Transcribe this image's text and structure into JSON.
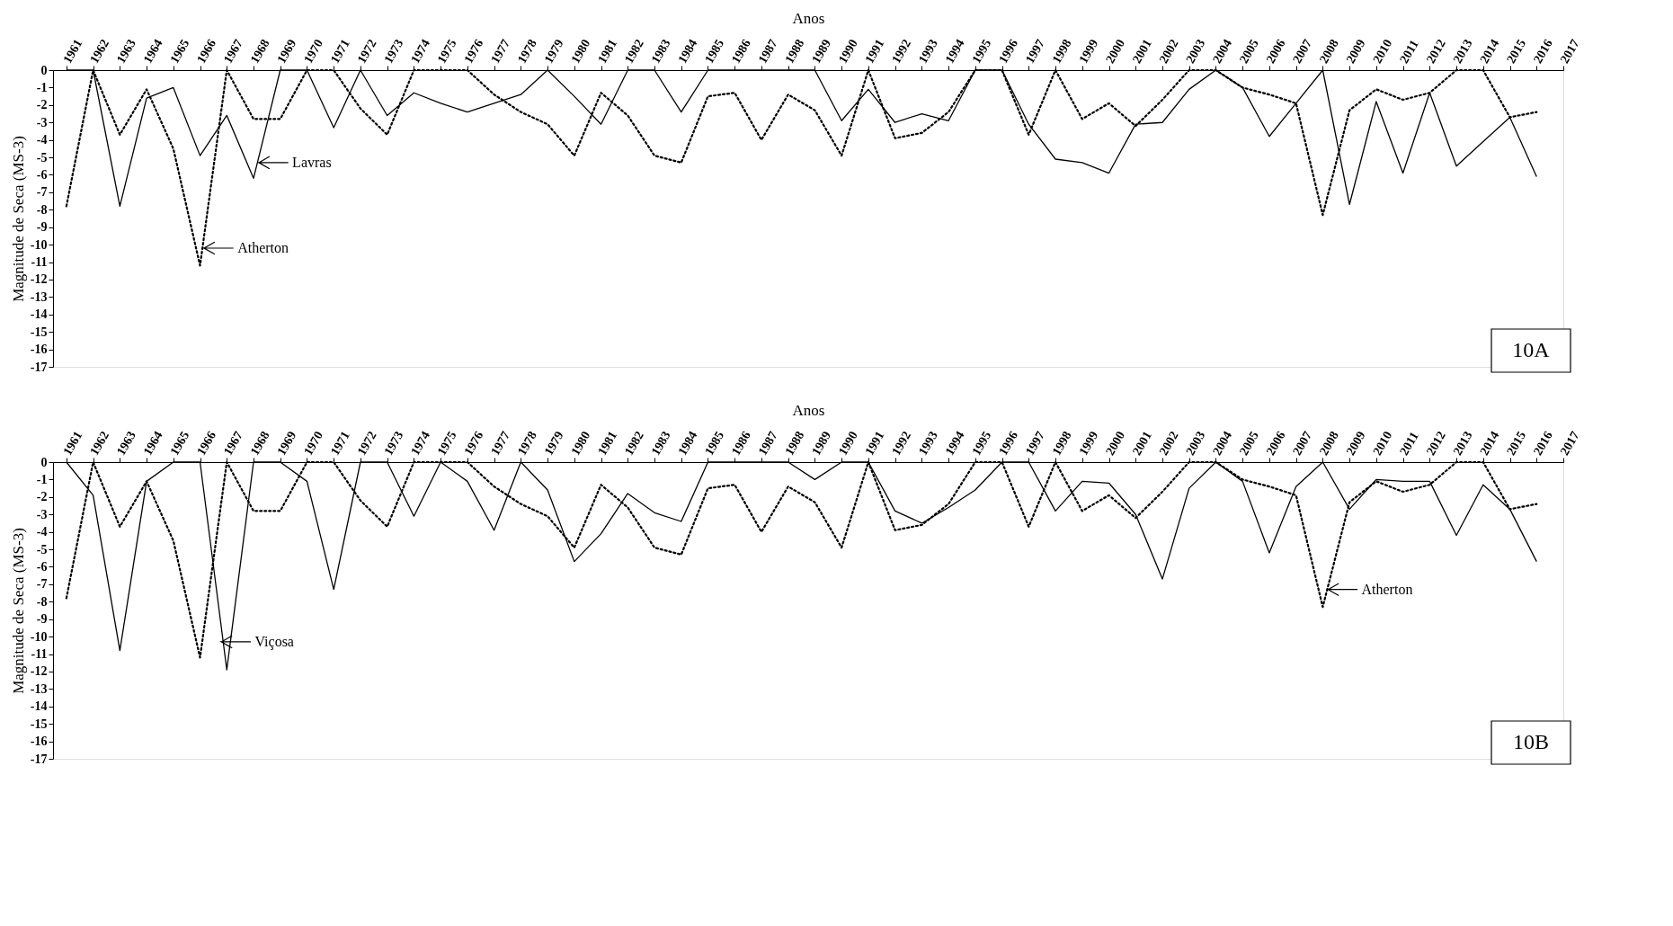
{
  "chart_data": [
    {
      "type": "line",
      "xlabel": "Anos",
      "ylabel": "Magnitude  de Seca (MS-3)",
      "x": [
        1961,
        1962,
        1963,
        1964,
        1965,
        1966,
        1967,
        1968,
        1969,
        1970,
        1971,
        1972,
        1973,
        1974,
        1975,
        1976,
        1977,
        1978,
        1979,
        1980,
        1981,
        1982,
        1983,
        1984,
        1985,
        1986,
        1987,
        1988,
        1989,
        1990,
        1991,
        1992,
        1993,
        1994,
        1995,
        1996,
        1997,
        1998,
        1999,
        2000,
        2001,
        2002,
        2003,
        2004,
        2005,
        2006,
        2007,
        2008,
        2009,
        2010,
        2011,
        2012,
        2013,
        2014,
        2015,
        2016
      ],
      "xlim": [
        1960.5,
        2017
      ],
      "xticks": [
        1961,
        1962,
        1963,
        1964,
        1965,
        1966,
        1967,
        1968,
        1969,
        1970,
        1971,
        1972,
        1973,
        1974,
        1975,
        1976,
        1977,
        1978,
        1979,
        1980,
        1981,
        1982,
        1983,
        1984,
        1985,
        1986,
        1987,
        1988,
        1989,
        1990,
        1991,
        1992,
        1993,
        1994,
        1995,
        1996,
        1997,
        1998,
        1999,
        2000,
        2001,
        2002,
        2003,
        2004,
        2005,
        2006,
        2007,
        2008,
        2009,
        2010,
        2011,
        2012,
        2013,
        2014,
        2015,
        2016,
        2017
      ],
      "ylim": [
        -17,
        0
      ],
      "yticks": [
        0,
        -1,
        -2,
        -3,
        -4,
        -5,
        -6,
        -7,
        -8,
        -9,
        -10,
        -11,
        -12,
        -13,
        -14,
        -15,
        -16,
        -17
      ],
      "series": [
        {
          "color": "#000000",
          "line_style": "solid",
          "values": [
            0,
            0,
            -7.8,
            -1.6,
            -1.0,
            -4.9,
            -2.6,
            -6.2,
            0,
            0,
            -3.3,
            0,
            -2.6,
            -1.3,
            -1.9,
            -2.4,
            -1.9,
            -1.4,
            0,
            -1.5,
            -3.1,
            0,
            0,
            -2.4,
            0,
            0,
            0,
            0,
            0,
            -2.9,
            -1.1,
            -3.0,
            -2.5,
            -2.9,
            0,
            0,
            -3.1,
            -5.1,
            -5.3,
            -5.9,
            -3.1,
            -3.0,
            -1.1,
            0,
            -1.0,
            -3.8,
            -1.9,
            0,
            -7.7,
            -1.8,
            -5.9,
            -1.3,
            -5.5,
            -4.1,
            -2.7,
            -6.1
          ]
        },
        {
          "color": "#000000",
          "line_style": "dotted",
          "values": [
            -7.8,
            0,
            -3.7,
            -1.1,
            -4.5,
            -11.2,
            0,
            -2.8,
            -2.8,
            0,
            0,
            -2.2,
            -3.7,
            0,
            0,
            0,
            -1.4,
            -2.4,
            -3.1,
            -4.9,
            -1.3,
            -2.6,
            -4.9,
            -5.3,
            -1.5,
            -1.3,
            -4.0,
            -1.4,
            -2.3,
            -4.9,
            0,
            -3.9,
            -3.6,
            -2.4,
            0,
            0,
            -3.7,
            0,
            -2.8,
            -1.9,
            -3.2,
            -1.7,
            0,
            0,
            -1.0,
            -1.4,
            -1.9,
            -8.3,
            -2.3,
            -1.1,
            -1.7,
            -1.3,
            0,
            0,
            -2.7,
            -2.4
          ]
        }
      ],
      "annotations": [
        {
          "text": "Lavras",
          "x": 1968.2,
          "y": -5.3
        },
        {
          "text": "Atherton",
          "x": 1966.15,
          "y": -10.2
        },
        "10A"
      ]
    },
    {
      "type": "line",
      "xlabel": "Anos",
      "ylabel": "Magnitude  de Seca (MS-3)",
      "x": [
        1961,
        1962,
        1963,
        1964,
        1965,
        1966,
        1967,
        1968,
        1969,
        1970,
        1971,
        1972,
        1973,
        1974,
        1975,
        1976,
        1977,
        1978,
        1979,
        1980,
        1981,
        1982,
        1983,
        1984,
        1985,
        1986,
        1987,
        1988,
        1989,
        1990,
        1991,
        1992,
        1993,
        1994,
        1995,
        1996,
        1997,
        1998,
        1999,
        2000,
        2001,
        2002,
        2003,
        2004,
        2005,
        2006,
        2007,
        2008,
        2009,
        2010,
        2011,
        2012,
        2013,
        2014,
        2015,
        2016
      ],
      "xlim": [
        1960.5,
        2017
      ],
      "xticks": [
        1961,
        1962,
        1963,
        1964,
        1965,
        1966,
        1967,
        1968,
        1969,
        1970,
        1971,
        1972,
        1973,
        1974,
        1975,
        1976,
        1977,
        1978,
        1979,
        1980,
        1981,
        1982,
        1983,
        1984,
        1985,
        1986,
        1987,
        1988,
        1989,
        1990,
        1991,
        1992,
        1993,
        1994,
        1995,
        1996,
        1997,
        1998,
        1999,
        2000,
        2001,
        2002,
        2003,
        2004,
        2005,
        2006,
        2007,
        2008,
        2009,
        2010,
        2011,
        2012,
        2013,
        2014,
        2015,
        2016,
        2017
      ],
      "ylim": [
        -17,
        0
      ],
      "yticks": [
        0,
        -1,
        -2,
        -3,
        -4,
        -5,
        -6,
        -7,
        -8,
        -9,
        -10,
        -11,
        -12,
        -13,
        -14,
        -15,
        -16,
        -17
      ],
      "series": [
        {
          "color": "#000000",
          "line_style": "solid",
          "values": [
            0,
            -1.9,
            -10.8,
            -1.1,
            0,
            0,
            -11.9,
            0,
            0,
            -1.1,
            -7.3,
            0,
            0,
            -3.1,
            0,
            -1.1,
            -3.9,
            0,
            -1.6,
            -5.7,
            -4.1,
            -1.8,
            -2.9,
            -3.4,
            0,
            0,
            0,
            0,
            -1.0,
            0,
            0,
            -2.8,
            -3.5,
            -2.6,
            -1.6,
            0,
            0,
            -2.8,
            -1.1,
            -1.2,
            -3.0,
            -6.7,
            -1.5,
            0,
            -1.1,
            -5.2,
            -1.4,
            0,
            -2.7,
            -1.0,
            -1.1,
            -1.1,
            -4.2,
            -1.3,
            -2.7,
            -5.7
          ]
        },
        {
          "color": "#000000",
          "line_style": "dotted",
          "values": [
            -7.8,
            0,
            -3.7,
            -1.1,
            -4.5,
            -11.2,
            0,
            -2.8,
            -2.8,
            0,
            0,
            -2.2,
            -3.7,
            0,
            0,
            0,
            -1.4,
            -2.4,
            -3.1,
            -4.9,
            -1.3,
            -2.6,
            -4.9,
            -5.3,
            -1.5,
            -1.3,
            -4.0,
            -1.4,
            -2.3,
            -4.9,
            0,
            -3.9,
            -3.6,
            -2.4,
            0,
            0,
            -3.7,
            0,
            -2.8,
            -1.9,
            -3.2,
            -1.7,
            0,
            0,
            -1.0,
            -1.4,
            -1.9,
            -8.3,
            -2.3,
            -1.1,
            -1.7,
            -1.3,
            0,
            0,
            -2.7,
            -2.4
          ]
        }
      ],
      "annotations": [
        {
          "text": "Viçosa",
          "x": 1966.8,
          "y": -10.3
        },
        {
          "text": "Atherton",
          "x": 2008.2,
          "y": -7.3
        },
        "10B"
      ]
    }
  ]
}
